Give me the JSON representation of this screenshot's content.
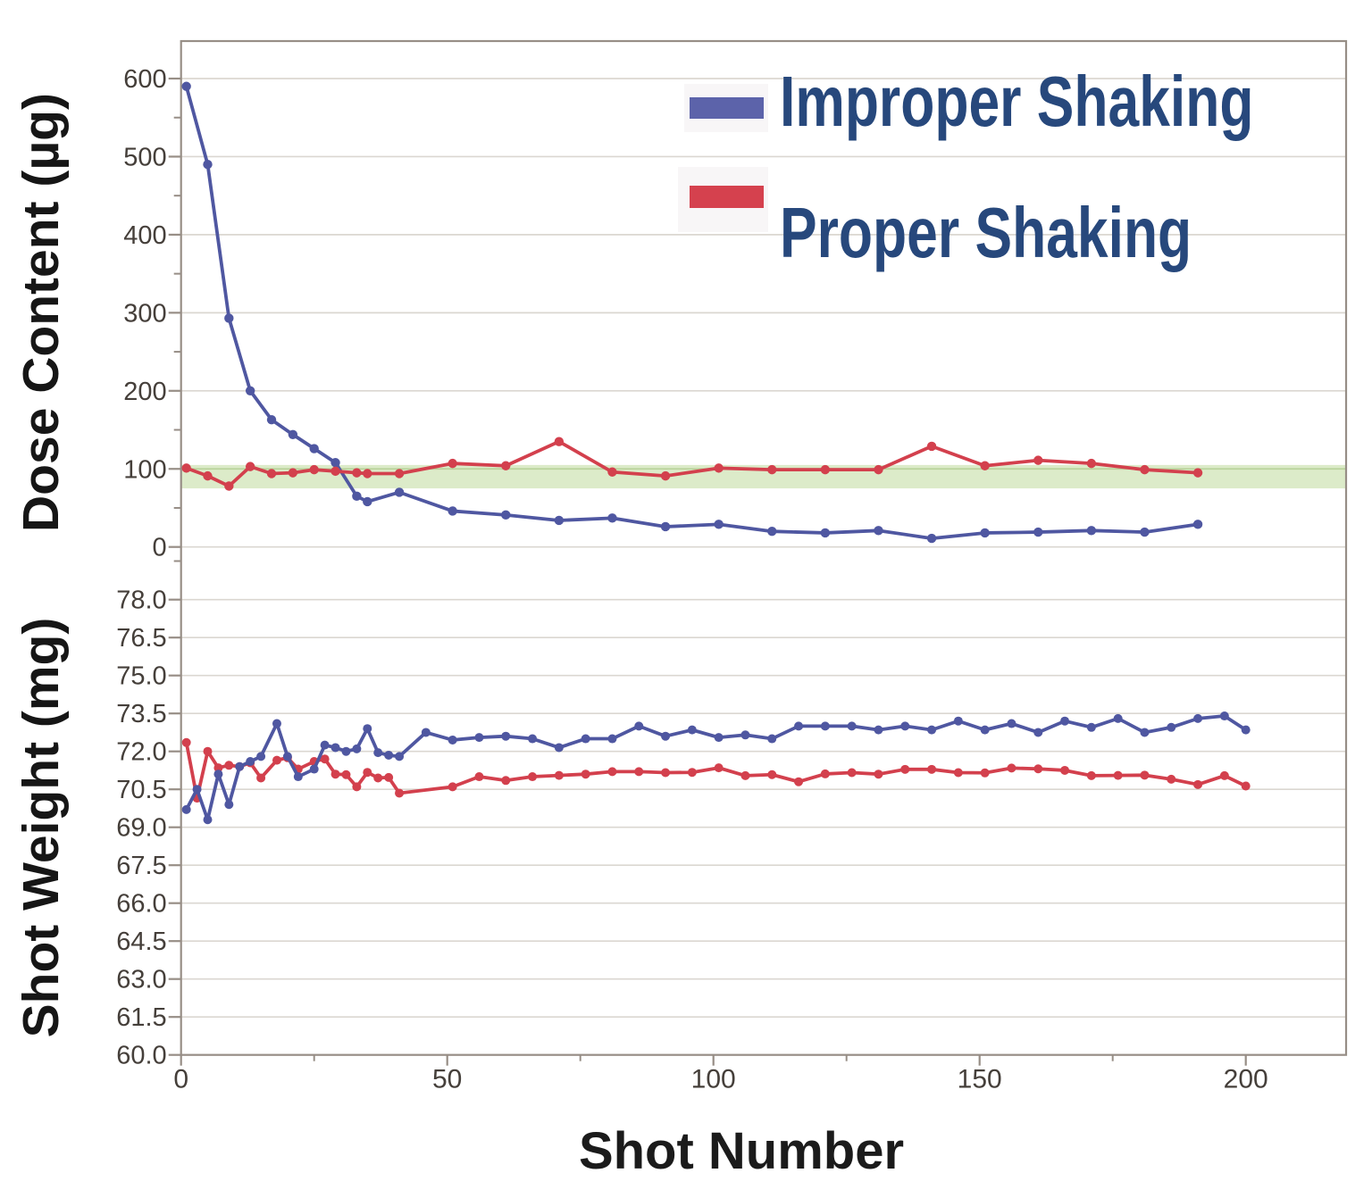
{
  "axes": {
    "x_title": "Shot Number",
    "x_ticks": [
      0,
      50,
      100,
      150,
      200
    ],
    "x_minor_ticks": [
      25,
      75,
      125,
      175
    ],
    "top_y_title": "Dose Content (µg)",
    "top_y_ticks": [
      0,
      100,
      200,
      300,
      400,
      500,
      600
    ],
    "top_y_minor_ticks": [
      50,
      150,
      250,
      350,
      450,
      550
    ],
    "bottom_y_title": "Shot Weight (mg)",
    "bottom_y_ticks": [
      60.0,
      61.5,
      63.0,
      64.5,
      66.0,
      67.5,
      69.0,
      70.5,
      72.0,
      73.5,
      75.0,
      76.5,
      78.0
    ]
  },
  "legend": [
    {
      "label": "Improper Shaking",
      "color": "#5C63AA"
    },
    {
      "label": "Proper Shaking",
      "color": "#D5414E"
    }
  ],
  "colors": {
    "improper_line": "#4F57A1",
    "proper_line": "#D3404D",
    "legend_text": "#27487C",
    "grid": "#DBD7D1",
    "axis": "#978E86",
    "tick_label": "#453F3A",
    "band_fill": "#DCEBC9",
    "band_grid_line": "#B9D29B"
  },
  "chart_data": [
    {
      "type": "line",
      "panel": "dose",
      "ylabel": "Dose Content (µg)",
      "xlabel": "Shot Number",
      "ylim": [
        -20,
        648
      ],
      "xlim": [
        -1,
        219
      ],
      "spec_band": [
        75,
        105
      ],
      "series": [
        {
          "name": "Improper Shaking",
          "x": [
            1,
            5,
            9,
            13,
            17,
            21,
            25,
            29,
            33,
            35,
            41,
            51,
            61,
            71,
            81,
            91,
            101,
            111,
            121,
            131,
            141,
            151,
            161,
            171,
            181,
            191
          ],
          "values": [
            590,
            490,
            293,
            200,
            163,
            144,
            126,
            108,
            65,
            58,
            70,
            46,
            41,
            34,
            37,
            26,
            29,
            20,
            18,
            21,
            11,
            18,
            19,
            21,
            19,
            29
          ]
        },
        {
          "name": "Proper Shaking",
          "x": [
            1,
            5,
            9,
            13,
            17,
            21,
            25,
            29,
            33,
            35,
            41,
            51,
            61,
            71,
            81,
            91,
            101,
            111,
            121,
            131,
            141,
            151,
            161,
            171,
            181,
            191
          ],
          "values": [
            101,
            91,
            78,
            103,
            94,
            95,
            99,
            97,
            95,
            94,
            94,
            107,
            104,
            135,
            96,
            91,
            101,
            99,
            99,
            99,
            129,
            104,
            111,
            107,
            99,
            95
          ]
        }
      ]
    },
    {
      "type": "line",
      "panel": "weight",
      "ylabel": "Shot Weight (mg)",
      "xlabel": "Shot Number",
      "ylim": [
        60,
        79.9
      ],
      "xlim": [
        -1,
        219
      ],
      "series": [
        {
          "name": "Improper Shaking",
          "x": [
            1,
            3,
            5,
            7,
            9,
            11,
            13,
            15,
            18,
            20,
            22,
            25,
            27,
            29,
            31,
            33,
            35,
            37,
            39,
            41,
            46,
            51,
            56,
            61,
            66,
            71,
            76,
            81,
            86,
            91,
            96,
            101,
            106,
            111,
            116,
            121,
            126,
            131,
            136,
            141,
            146,
            151,
            156,
            161,
            166,
            171,
            176,
            181,
            186,
            191,
            196,
            200
          ],
          "values": [
            69.7,
            70.5,
            69.3,
            71.1,
            69.9,
            71.4,
            71.6,
            71.8,
            73.1,
            71.8,
            71.0,
            71.3,
            72.25,
            72.15,
            72.0,
            72.1,
            72.9,
            71.95,
            71.85,
            71.8,
            72.75,
            72.45,
            72.55,
            72.6,
            72.5,
            72.15,
            72.5,
            72.5,
            73.0,
            72.6,
            72.85,
            72.55,
            72.65,
            72.5,
            73.0,
            73.0,
            73.0,
            72.85,
            73.0,
            72.85,
            73.2,
            72.85,
            73.1,
            72.75,
            73.2,
            72.95,
            73.3,
            72.75,
            72.95,
            73.3,
            73.4,
            72.85
          ]
        },
        {
          "name": "Proper Shaking",
          "x": [
            1,
            3,
            5,
            7,
            9,
            11,
            13,
            15,
            18,
            20,
            22,
            25,
            27,
            29,
            31,
            33,
            35,
            37,
            39,
            41,
            51,
            56,
            61,
            66,
            71,
            76,
            81,
            86,
            91,
            96,
            101,
            106,
            111,
            116,
            121,
            126,
            131,
            136,
            141,
            146,
            151,
            156,
            161,
            166,
            171,
            176,
            181,
            186,
            191,
            196,
            200
          ],
          "values": [
            72.35,
            70.15,
            72.0,
            71.35,
            71.45,
            71.4,
            71.55,
            70.95,
            71.65,
            71.75,
            71.3,
            71.6,
            71.7,
            71.1,
            71.08,
            70.6,
            71.17,
            70.95,
            70.97,
            70.35,
            70.6,
            71.0,
            70.85,
            71.0,
            71.05,
            71.1,
            71.2,
            71.2,
            71.16,
            71.17,
            71.35,
            71.04,
            71.08,
            70.8,
            71.11,
            71.16,
            71.1,
            71.29,
            71.29,
            71.16,
            71.15,
            71.34,
            71.31,
            71.25,
            71.04,
            71.05,
            71.06,
            70.9,
            70.69,
            71.04,
            70.63
          ]
        }
      ]
    }
  ]
}
